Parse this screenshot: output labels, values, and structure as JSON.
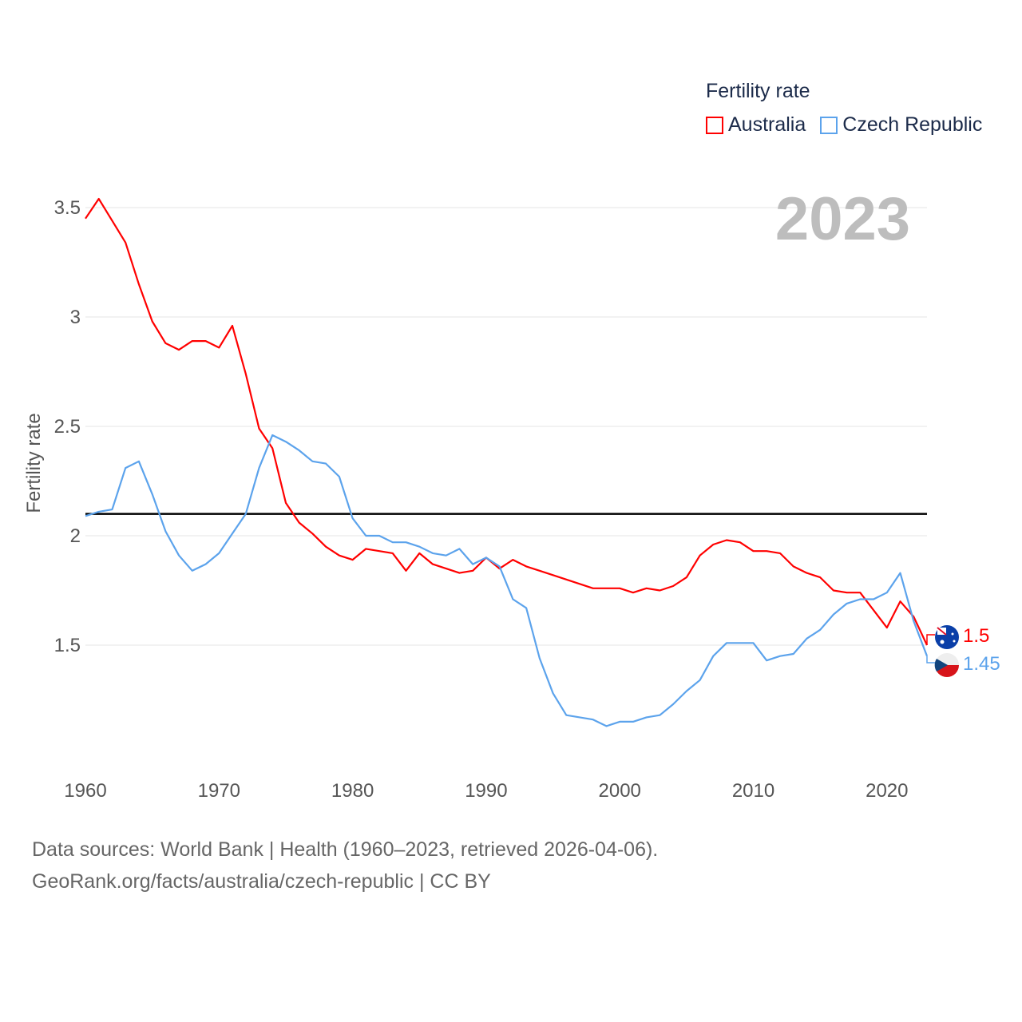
{
  "chart_data": {
    "type": "line",
    "title": "",
    "year_label": "2023",
    "ylabel": "Fertility rate",
    "xlabel": "",
    "ylim": [
      0.95,
      3.6
    ],
    "xlim": [
      1960,
      2023
    ],
    "yticks": [
      1.5,
      2,
      2.5,
      3,
      3.5
    ],
    "ytick_labels": [
      "1.5",
      "2",
      "2.5",
      "3",
      "3.5"
    ],
    "xticks": [
      1960,
      1970,
      1980,
      1990,
      2000,
      2010,
      2020
    ],
    "xtick_labels": [
      "1960",
      "1970",
      "1980",
      "1990",
      "2000",
      "2010",
      "2020"
    ],
    "grid": true,
    "reference_line": 2.1,
    "legend_title": "Fertility rate",
    "legend_position": "top-right",
    "x": [
      1960,
      1961,
      1962,
      1963,
      1964,
      1965,
      1966,
      1967,
      1968,
      1969,
      1970,
      1971,
      1972,
      1973,
      1974,
      1975,
      1976,
      1977,
      1978,
      1979,
      1980,
      1981,
      1982,
      1983,
      1984,
      1985,
      1986,
      1987,
      1988,
      1989,
      1990,
      1991,
      1992,
      1993,
      1994,
      1995,
      1996,
      1997,
      1998,
      1999,
      2000,
      2001,
      2002,
      2003,
      2004,
      2005,
      2006,
      2007,
      2008,
      2009,
      2010,
      2011,
      2012,
      2013,
      2014,
      2015,
      2016,
      2017,
      2018,
      2019,
      2020,
      2021,
      2022,
      2023
    ],
    "series": [
      {
        "name": "Australia",
        "color": "#ff0000",
        "end_label": "1.5",
        "values": [
          3.45,
          3.54,
          3.44,
          3.34,
          3.15,
          2.98,
          2.88,
          2.85,
          2.89,
          2.89,
          2.86,
          2.96,
          2.74,
          2.49,
          2.4,
          2.15,
          2.06,
          2.01,
          1.95,
          1.91,
          1.89,
          1.94,
          1.93,
          1.92,
          1.84,
          1.92,
          1.87,
          1.85,
          1.83,
          1.84,
          1.9,
          1.85,
          1.89,
          1.86,
          1.84,
          1.82,
          1.8,
          1.78,
          1.76,
          1.76,
          1.76,
          1.74,
          1.76,
          1.75,
          1.77,
          1.81,
          1.91,
          1.96,
          1.98,
          1.97,
          1.93,
          1.93,
          1.92,
          1.86,
          1.83,
          1.81,
          1.75,
          1.74,
          1.74,
          1.66,
          1.58,
          1.7,
          1.63,
          1.5
        ]
      },
      {
        "name": "Czech Republic",
        "color": "#5ca3ec",
        "end_label": "1.45",
        "values": [
          2.09,
          2.11,
          2.12,
          2.31,
          2.34,
          2.19,
          2.02,
          1.91,
          1.84,
          1.87,
          1.92,
          2.01,
          2.1,
          2.31,
          2.46,
          2.43,
          2.39,
          2.34,
          2.33,
          2.27,
          2.08,
          2.0,
          2.0,
          1.97,
          1.97,
          1.95,
          1.92,
          1.91,
          1.94,
          1.87,
          1.9,
          1.86,
          1.71,
          1.67,
          1.44,
          1.28,
          1.18,
          1.17,
          1.16,
          1.13,
          1.15,
          1.15,
          1.17,
          1.18,
          1.23,
          1.29,
          1.34,
          1.45,
          1.51,
          1.51,
          1.51,
          1.43,
          1.45,
          1.46,
          1.53,
          1.57,
          1.64,
          1.69,
          1.71,
          1.71,
          1.74,
          1.83,
          1.61,
          1.45
        ]
      }
    ]
  },
  "footer": {
    "line1": "Data sources: World Bank | Health (1960–2023, retrieved 2026-04-06).",
    "line2": "GeoRank.org/facts/australia/czech-republic | CC BY"
  }
}
